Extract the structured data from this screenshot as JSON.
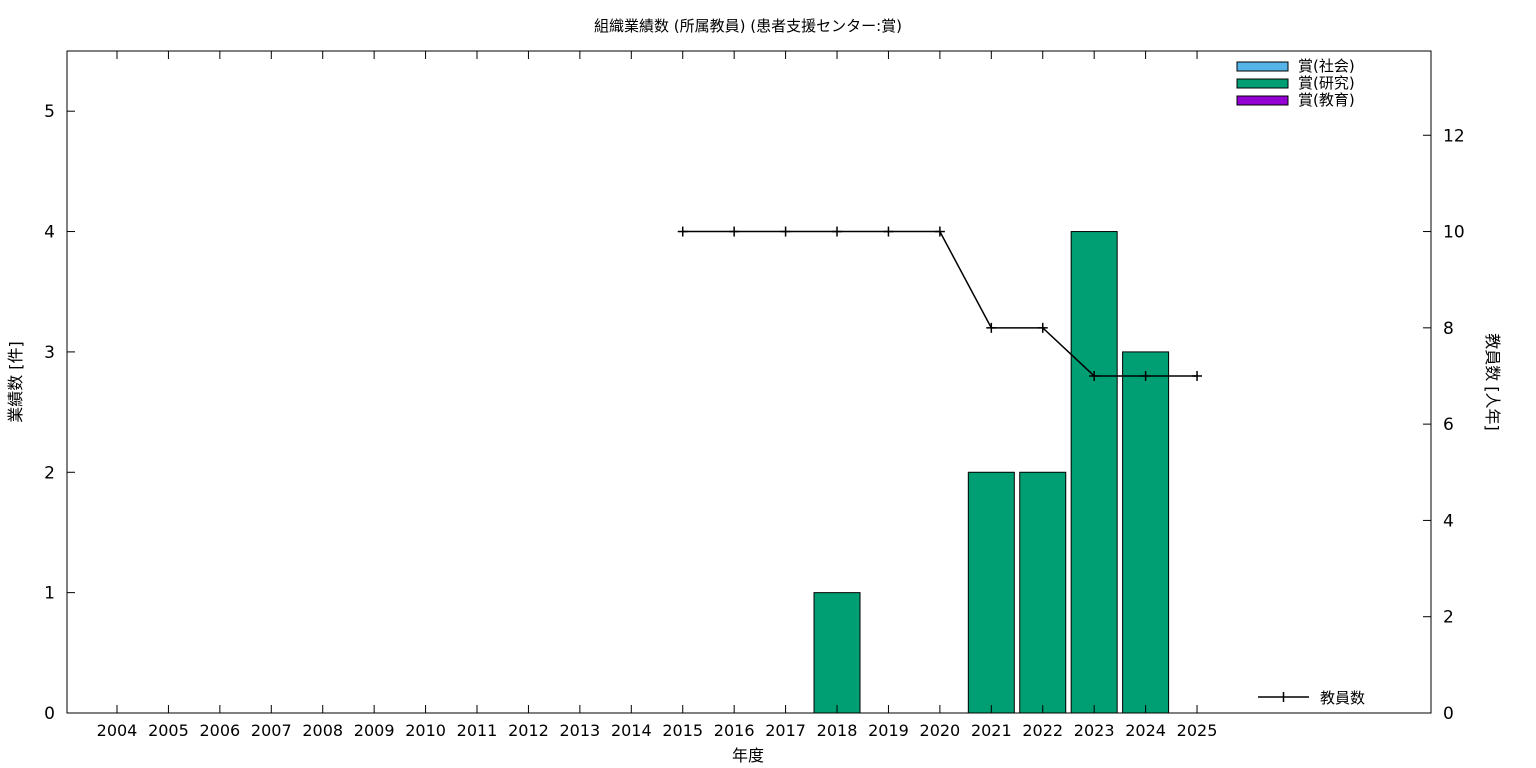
{
  "chart_data": {
    "type": "bar",
    "title": "組織業績数 (所属教員) (患者支援センター:賞)",
    "xlabel": "年度",
    "ylabel": "業績数 [件]",
    "y2label": "教員数 [人年]",
    "categories": [
      "2004",
      "2005",
      "2006",
      "2007",
      "2008",
      "2009",
      "2010",
      "2011",
      "2012",
      "2013",
      "2014",
      "2015",
      "2016",
      "2017",
      "2018",
      "2019",
      "2020",
      "2021",
      "2022",
      "2023",
      "2024",
      "2025"
    ],
    "ylim": [
      0,
      5.5
    ],
    "yticks": [
      0,
      1,
      2,
      3,
      4,
      5
    ],
    "y2lim": [
      0,
      13.75
    ],
    "y2ticks": [
      0,
      2,
      4,
      6,
      8,
      10,
      12
    ],
    "series": [
      {
        "name": "賞(社会)",
        "color": "#56b4e9",
        "axis": "y",
        "kind": "bar",
        "values": [
          0,
          0,
          0,
          0,
          0,
          0,
          0,
          0,
          0,
          0,
          0,
          0,
          0,
          0,
          0,
          0,
          0,
          0,
          0,
          0,
          0,
          0
        ]
      },
      {
        "name": "賞(研究)",
        "color": "#009e73",
        "axis": "y",
        "kind": "bar",
        "values": [
          0,
          0,
          0,
          0,
          0,
          0,
          0,
          0,
          0,
          0,
          0,
          0,
          0,
          0,
          1,
          0,
          0,
          2,
          2,
          4,
          3,
          0
        ]
      },
      {
        "name": "賞(教育)",
        "color": "#9400d3",
        "axis": "y",
        "kind": "bar",
        "values": [
          0,
          0,
          0,
          0,
          0,
          0,
          0,
          0,
          0,
          0,
          0,
          0,
          0,
          0,
          0,
          0,
          0,
          0,
          0,
          0,
          0,
          0
        ]
      }
    ],
    "line": {
      "name": "教員数",
      "color": "#000000",
      "axis": "y2",
      "x": [
        "2015",
        "2016",
        "2017",
        "2018",
        "2019",
        "2020",
        "2021",
        "2022",
        "2023",
        "2024",
        "2025"
      ],
      "values": [
        10,
        10,
        10,
        10,
        10,
        10,
        8,
        8,
        7,
        7,
        7
      ]
    },
    "legend_placement": "top-right",
    "line_legend_placement": "bottom-right",
    "grid": false
  }
}
